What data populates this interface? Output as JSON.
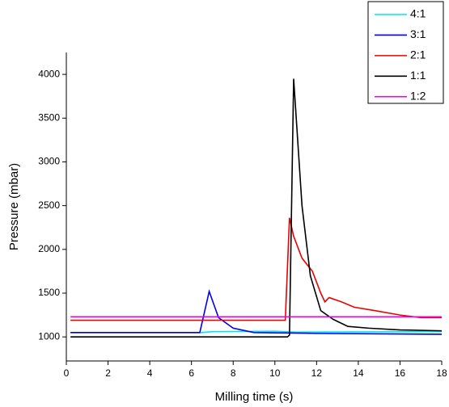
{
  "chart_data": {
    "type": "line",
    "xlabel": "Milling time (s)",
    "ylabel": "Pressure (mbar)",
    "xlim": [
      0,
      18
    ],
    "xticks": [
      0,
      2,
      4,
      6,
      8,
      10,
      12,
      14,
      16,
      18
    ],
    "ylim": [
      725,
      4250
    ],
    "yticks": [
      1000,
      1500,
      2000,
      2500,
      3000,
      3500,
      4000
    ],
    "legend_position": "top-right",
    "series": [
      {
        "name": "4:1",
        "color": "#00e5ee",
        "x": [
          0.2,
          6.5,
          7.0,
          10.0,
          11.0,
          18.0
        ],
        "values": [
          1050,
          1050,
          1060,
          1065,
          1055,
          1060
        ]
      },
      {
        "name": "3:1",
        "color": "#0000ee",
        "x": [
          0.2,
          6.4,
          6.85,
          7.3,
          8.0,
          9.0,
          12.0,
          18.0
        ],
        "values": [
          1050,
          1050,
          1520,
          1220,
          1100,
          1050,
          1040,
          1030
        ]
      },
      {
        "name": "2:1",
        "color": "#ee0000",
        "x": [
          0.2,
          10.5,
          10.7,
          10.9,
          11.3,
          11.8,
          12.2,
          12.4,
          12.6,
          13.2,
          13.8,
          14.8,
          16.0,
          17.0,
          18.0
        ],
        "values": [
          1190,
          1190,
          2360,
          2150,
          1900,
          1750,
          1500,
          1400,
          1450,
          1400,
          1340,
          1300,
          1250,
          1220,
          1220
        ]
      },
      {
        "name": "1:1",
        "color": "#000000",
        "x": [
          0.2,
          10.6,
          10.7,
          10.9,
          11.3,
          11.7,
          12.2,
          12.8,
          13.5,
          14.5,
          16.0,
          18.0
        ],
        "values": [
          1000,
          1000,
          1020,
          3950,
          2500,
          1700,
          1300,
          1200,
          1120,
          1100,
          1080,
          1070
        ]
      },
      {
        "name": "1:2",
        "color": "#ee00ee",
        "x": [
          0.2,
          18.0
        ],
        "values": [
          1230,
          1230
        ]
      }
    ]
  }
}
